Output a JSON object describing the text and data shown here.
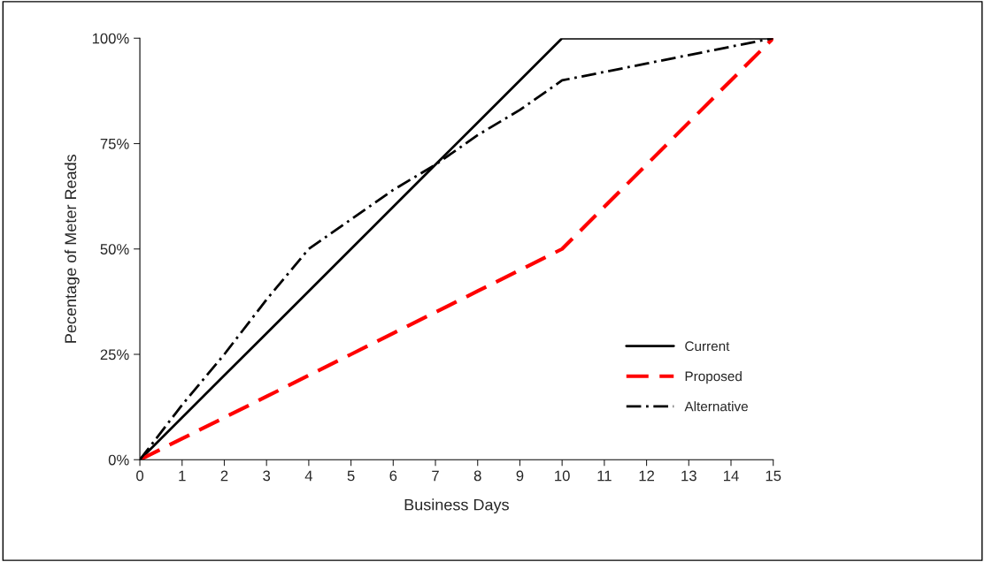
{
  "chart_data": {
    "type": "line",
    "xlabel": "Business Days",
    "ylabel": "Pecentage of Meter Reads",
    "x": [
      0,
      1,
      2,
      3,
      4,
      5,
      6,
      7,
      8,
      9,
      10,
      11,
      12,
      13,
      14,
      15
    ],
    "series": [
      {
        "name": "Current",
        "color": "#000000",
        "line_style": "solid",
        "values": [
          0,
          10,
          20,
          30,
          40,
          50,
          60,
          70,
          80,
          90,
          100,
          100,
          100,
          100,
          100,
          100
        ]
      },
      {
        "name": "Proposed",
        "color": "#ff0000",
        "line_style": "dashed",
        "values": [
          0,
          5,
          10,
          15,
          20,
          25,
          30,
          35,
          40,
          45,
          50,
          60,
          70,
          80,
          90,
          100
        ]
      },
      {
        "name": "Alternative",
        "color": "#000000",
        "line_style": "dashdot",
        "values": [
          0,
          13,
          25,
          38,
          50,
          57,
          64,
          70,
          77,
          83,
          90,
          92,
          94,
          96,
          98,
          100
        ]
      }
    ],
    "xlim": [
      0,
      15
    ],
    "xticks": [
      0,
      1,
      2,
      3,
      4,
      5,
      6,
      7,
      8,
      9,
      10,
      11,
      12,
      13,
      14,
      15
    ],
    "ylim": [
      0,
      100
    ],
    "yticks": [
      {
        "value": 0,
        "label": "0%"
      },
      {
        "value": 25,
        "label": "25%"
      },
      {
        "value": 50,
        "label": "50%"
      },
      {
        "value": 75,
        "label": "75%"
      },
      {
        "value": 100,
        "label": "100%"
      }
    ],
    "grid": false,
    "legend": "bottom right"
  }
}
